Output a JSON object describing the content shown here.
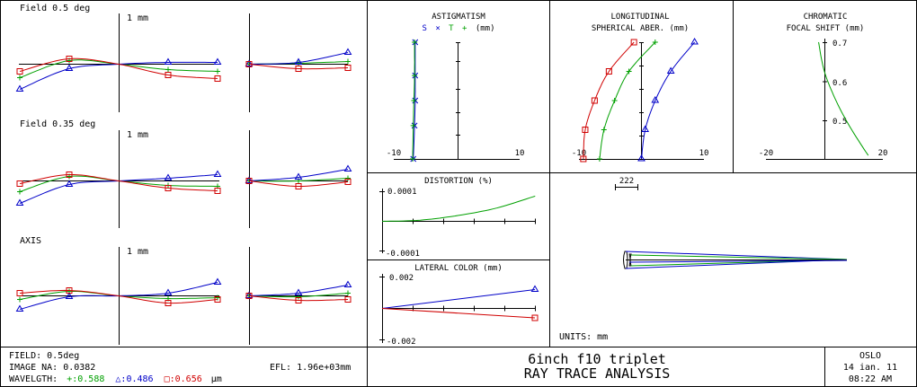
{
  "colors": {
    "green": "#00a000",
    "blue": "#0000c8",
    "red": "#d00000",
    "black": "#000000"
  },
  "ray_fans": {
    "unit_label": "1 mm",
    "fields": [
      {
        "label": "Field 0.5 deg"
      },
      {
        "label": "Field 0.35 deg"
      },
      {
        "label": "AXIS"
      }
    ]
  },
  "astigmatism": {
    "title": "ASTIGMATISM",
    "legend": {
      "s": "S",
      "x1": "×",
      "t": "T",
      "plus": "+",
      "unit": "(mm)"
    },
    "x_ticks": [
      "-10",
      "10"
    ]
  },
  "spherical": {
    "title1": "LONGITUDINAL",
    "title2": "SPHERICAL ABER. (mm)",
    "x_ticks": [
      "-10",
      "10"
    ]
  },
  "focal_shift": {
    "title1": "CHROMATIC",
    "title2": "FOCAL SHIFT (mm)",
    "y_ticks": [
      "0.7",
      "0.6",
      "0.5"
    ],
    "x_ticks": [
      "-20",
      "20"
    ]
  },
  "distortion": {
    "title": "DISTORTION (%)",
    "y_ticks": [
      "0.0001",
      "-0.0001"
    ]
  },
  "lateral_color": {
    "title": "LATERAL COLOR (mm)",
    "y_ticks": [
      "0.002",
      "-0.002"
    ]
  },
  "layout_view": {
    "scale_label": "222",
    "units_label": "UNITS: mm"
  },
  "footer": {
    "field": "FIELD: 0.5deg",
    "image_na": "IMAGE NA: 0.0382",
    "wavelength_label": "WAVELGTH:",
    "wl_green": "+:0.588",
    "wl_blue": "△:0.486",
    "wl_red": "□:0.656",
    "wl_unit": "μm",
    "efl": "EFL: 1.96e+03mm",
    "title": "6inch f10 triplet",
    "subtitle": "RAY TRACE ANALYSIS",
    "program": "OSLO",
    "date": "14 ian. 11",
    "time": "08:22 AM"
  },
  "chart_data": [
    {
      "type": "line",
      "name": "ray-fan-tangential",
      "series": [
        {
          "color": "green",
          "fields": [
            {
              "x": [
                -1,
                -0.5,
                0,
                0.5,
                1
              ],
              "y": [
                -0.15,
                0.04,
                0,
                -0.06,
                -0.08
              ]
            },
            {
              "x": [
                -1,
                -0.5,
                0,
                0.5,
                1
              ],
              "y": [
                -0.12,
                0.05,
                0,
                -0.05,
                -0.06
              ]
            },
            {
              "x": [
                -1,
                -0.5,
                0,
                0.5,
                1
              ],
              "y": [
                -0.04,
                0.05,
                0,
                -0.03,
                -0.02
              ]
            }
          ]
        },
        {
          "color": "blue",
          "fields": [
            {
              "x": [
                -1,
                -0.5,
                0,
                0.5,
                1
              ],
              "y": [
                -0.28,
                -0.05,
                0,
                0.02,
                0.02
              ]
            },
            {
              "x": [
                -1,
                -0.5,
                0,
                0.5,
                1
              ],
              "y": [
                -0.25,
                -0.04,
                0,
                0.03,
                0.07
              ]
            },
            {
              "x": [
                -1,
                -0.5,
                0,
                0.5,
                1
              ],
              "y": [
                -0.15,
                -0.01,
                0,
                0.03,
                0.15
              ]
            }
          ]
        },
        {
          "color": "red",
          "fields": [
            {
              "x": [
                -1,
                -0.5,
                0,
                0.5,
                1
              ],
              "y": [
                -0.08,
                0.06,
                0,
                -0.12,
                -0.16
              ]
            },
            {
              "x": [
                -1,
                -0.5,
                0,
                0.5,
                1
              ],
              "y": [
                -0.03,
                0.07,
                0,
                -0.08,
                -0.11
              ]
            },
            {
              "x": [
                -1,
                -0.5,
                0,
                0.5,
                1
              ],
              "y": [
                0.03,
                0.06,
                0,
                -0.08,
                -0.04
              ]
            }
          ]
        }
      ]
    },
    {
      "type": "line",
      "name": "ray-fan-sagittal",
      "series": [
        {
          "color": "green",
          "fields": [
            {
              "x": [
                0,
                0.5,
                1
              ],
              "y": [
                0,
                0.01,
                0.03
              ]
            },
            {
              "x": [
                0,
                0.5,
                1
              ],
              "y": [
                0,
                0.0,
                0.03
              ]
            },
            {
              "x": [
                0,
                0.5,
                1
              ],
              "y": [
                0,
                -0.01,
                0.03
              ]
            }
          ]
        },
        {
          "color": "blue",
          "fields": [
            {
              "x": [
                0,
                0.5,
                1
              ],
              "y": [
                0,
                0.02,
                0.13
              ]
            },
            {
              "x": [
                0,
                0.5,
                1
              ],
              "y": [
                0,
                0.04,
                0.13
              ]
            },
            {
              "x": [
                0,
                0.5,
                1
              ],
              "y": [
                0,
                0.03,
                0.12
              ]
            }
          ]
        },
        {
          "color": "red",
          "fields": [
            {
              "x": [
                0,
                0.5,
                1
              ],
              "y": [
                0,
                -0.05,
                -0.04
              ]
            },
            {
              "x": [
                0,
                0.5,
                1
              ],
              "y": [
                0,
                -0.06,
                -0.01
              ]
            },
            {
              "x": [
                0,
                0.5,
                1
              ],
              "y": [
                0,
                -0.05,
                -0.04
              ]
            }
          ]
        }
      ]
    },
    {
      "type": "line",
      "name": "astigmatism",
      "xlim": [
        -10,
        10
      ],
      "ylim": [
        0,
        0.7
      ],
      "series": [
        {
          "name": "S",
          "color": "blue",
          "marker": "x",
          "x": [
            -6.9,
            -6.7,
            -6.6,
            -6.6,
            -6.6
          ],
          "y": [
            0,
            0.2,
            0.35,
            0.5,
            0.7
          ]
        },
        {
          "name": "T",
          "color": "green",
          "marker": "+",
          "x": [
            -7.0,
            -6.9,
            -6.8,
            -6.7,
            -6.7
          ],
          "y": [
            0,
            0.2,
            0.35,
            0.5,
            0.7
          ]
        }
      ]
    },
    {
      "type": "line",
      "name": "longitudinal-spherical",
      "xlim": [
        -10,
        10
      ],
      "ylim": [
        0,
        1
      ],
      "series": [
        {
          "color": "red",
          "marker": "square",
          "x": [
            -9.3,
            -9.0,
            -7.5,
            -5.2,
            -1.2
          ],
          "y": [
            0,
            0.25,
            0.5,
            0.75,
            1.0
          ]
        },
        {
          "color": "green",
          "marker": "+",
          "x": [
            -6.7,
            -6.0,
            -4.3,
            -2.0,
            2.2
          ],
          "y": [
            0,
            0.25,
            0.5,
            0.75,
            1.0
          ]
        },
        {
          "color": "blue",
          "marker": "triangle",
          "x": [
            0.0,
            0.6,
            2.2,
            4.7,
            8.5
          ],
          "y": [
            0,
            0.25,
            0.5,
            0.75,
            1.0
          ]
        }
      ]
    },
    {
      "type": "line",
      "name": "chromatic-focal-shift",
      "xlim": [
        -20,
        20
      ],
      "y_ticks": [
        0.5,
        0.6,
        0.7
      ],
      "series": [
        {
          "color": "green",
          "x": [
            -2.0,
            0,
            4,
            9,
            15
          ],
          "y": [
            0.7,
            0.625,
            0.55,
            0.48,
            0.41
          ]
        }
      ]
    },
    {
      "type": "line",
      "name": "distortion",
      "ylim": [
        -0.0001,
        0.0001
      ],
      "series": [
        {
          "color": "green",
          "x": [
            0,
            0.25,
            0.5,
            0.75,
            1.0
          ],
          "y": [
            0,
            4e-06,
            2e-05,
            4.5e-05,
            8.5e-05
          ]
        }
      ]
    },
    {
      "type": "line",
      "name": "lateral-color",
      "ylim": [
        -0.002,
        0.002
      ],
      "series": [
        {
          "color": "blue",
          "x": [
            0,
            1
          ],
          "y": [
            0,
            0.0012
          ]
        },
        {
          "color": "red",
          "x": [
            0,
            1
          ],
          "y": [
            0,
            -0.0006
          ]
        }
      ]
    }
  ]
}
